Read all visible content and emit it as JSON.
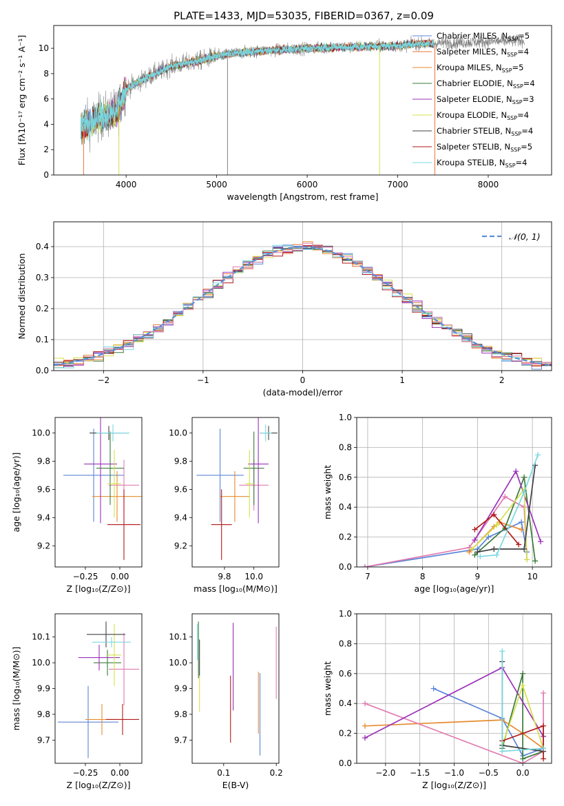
{
  "figure": {
    "title": "PLATE=1433, MJD=53035, FIBERID=0367, z=0.09"
  },
  "colors": {
    "Chabrier MILES": "#5b84d6",
    "Salpeter MILES": "#e5733a",
    "Kroupa MILES": "#e68a2e",
    "Chabrier ELODIE": "#3a7a3a",
    "Salpeter ELODIE": "#9b30b8",
    "Kroupa ELODIE": "#d4e04a",
    "Chabrier STELIB": "#404040",
    "Salpeter STELIB": "#b01818",
    "Kroupa STELIB": "#78d8e0",
    "model_pink": "#e07ab0",
    "normal_curve": "#5b8fd6",
    "data_spectrum": "#808080"
  },
  "chart_data": [
    {
      "id": "spectrum",
      "type": "line",
      "title": "PLATE=1433, MJD=53035, FIBERID=0367, z=0.09",
      "xlabel": "wavelength [Angstrom, rest frame]",
      "ylabel": "Flux [fλ10⁻¹⁷ erg cm⁻² s⁻¹ A⁻¹]",
      "xlim": [
        3200,
        8700
      ],
      "ylim": [
        0,
        11.8
      ],
      "xticks": [
        4000,
        5000,
        6000,
        7000,
        8000
      ],
      "yticks": [
        0,
        2,
        4,
        6,
        8,
        10
      ],
      "legend_position": "right",
      "legend": [
        {
          "label": "Chabrier MILES, N",
          "sub": "SSP",
          "suffix": "=5",
          "color": "#5b84d6"
        },
        {
          "label": "Salpeter MILES, N",
          "sub": "SSP",
          "suffix": "=4",
          "color": "#e5733a"
        },
        {
          "label": "Kroupa MILES, N",
          "sub": "SSP",
          "suffix": "=5",
          "color": "#e68a2e"
        },
        {
          "label": "Chabrier ELODIE, N",
          "sub": "SSP",
          "suffix": "=4",
          "color": "#3a7a3a"
        },
        {
          "label": "Salpeter ELODIE, N",
          "sub": "SSP",
          "suffix": "=3",
          "color": "#9b30b8"
        },
        {
          "label": "Kroupa ELODIE, N",
          "sub": "SSP",
          "suffix": "=4",
          "color": "#d4e04a"
        },
        {
          "label": "Chabrier STELIB, N",
          "sub": "SSP",
          "suffix": "=4",
          "color": "#404040"
        },
        {
          "label": "Salpeter STELIB, N",
          "sub": "SSP",
          "suffix": "=5",
          "color": "#b01818"
        },
        {
          "label": "Kroupa STELIB, N",
          "sub": "SSP",
          "suffix": "=4",
          "color": "#78d8e0"
        }
      ],
      "continuum": {
        "x": [
          3500,
          3700,
          3900,
          4000,
          4200,
          4500,
          4800,
          5000,
          5200,
          5500,
          6000,
          6500,
          7000,
          7300,
          7400
        ],
        "y": [
          3.8,
          4.5,
          5.0,
          6.8,
          7.6,
          8.6,
          9.0,
          9.4,
          9.6,
          9.8,
          10.0,
          10.1,
          10.2,
          10.4,
          10.3
        ]
      },
      "data_range": [
        3500,
        8400
      ],
      "model_range": [
        3500,
        7400
      ],
      "spikes": [
        {
          "x": 3530,
          "color": "#e5733a"
        },
        {
          "x": 3920,
          "color": "#d4e04a"
        },
        {
          "x": 5120,
          "color": "#808080"
        },
        {
          "x": 6800,
          "color": "#d4e04a"
        },
        {
          "x": 7410,
          "color": "#e5733a"
        }
      ]
    },
    {
      "id": "residuals",
      "type": "line",
      "xlabel": "(data-model)/error",
      "ylabel": "Normed distribution",
      "xlim": [
        -2.5,
        2.5
      ],
      "ylim": [
        0,
        0.48
      ],
      "xticks": [
        -2,
        -1,
        0,
        1,
        2
      ],
      "yticks": [
        0.0,
        0.1,
        0.2,
        0.3,
        0.4
      ],
      "grid": true,
      "legend_position": "top-right",
      "normal_label": "𝒩(0, 1)",
      "bin_width": 0.1
    },
    {
      "id": "age_Z",
      "type": "scatter",
      "xlabel": "Z [log₁₀(Z/Z⊙)]",
      "ylabel": "age  [log₁₀(age/yr)]",
      "xlim": [
        -0.47,
        0.16
      ],
      "ylim": [
        9.05,
        10.11
      ],
      "xticks": [
        -0.25,
        0.0
      ],
      "xticklabels": [
        "−0.25",
        "0.00"
      ],
      "yticks": [
        9.2,
        9.4,
        9.6,
        9.8,
        10.0
      ],
      "points": [
        {
          "x": -0.19,
          "y": 9.7,
          "xerr": 0.22,
          "yerr": 0.33,
          "color": "#5b84d6"
        },
        {
          "x": -0.02,
          "y": 9.55,
          "xerr": 0.18,
          "yerr": 0.18,
          "color": "#e68a2e"
        },
        {
          "x": 0.03,
          "y": 9.63,
          "xerr": 0.11,
          "yerr": 0.18,
          "color": "#e07ab0"
        },
        {
          "x": -0.07,
          "y": 9.75,
          "xerr": 0.1,
          "yerr": 0.26,
          "color": "#3a7a3a"
        },
        {
          "x": -0.14,
          "y": 9.78,
          "xerr": 0.12,
          "yerr": 0.42,
          "color": "#9b30b8"
        },
        {
          "x": -0.04,
          "y": 9.64,
          "xerr": 0.05,
          "yerr": 0.24,
          "color": "#d4e04a"
        },
        {
          "x": -0.08,
          "y": 10.0,
          "xerr": 0.14,
          "yerr": 0.05,
          "color": "#404040"
        },
        {
          "x": 0.03,
          "y": 9.35,
          "xerr": 0.12,
          "yerr": 0.25,
          "color": "#b01818"
        },
        {
          "x": -0.05,
          "y": 10.0,
          "xerr": 0.12,
          "yerr": 0.06,
          "color": "#78d8e0"
        }
      ]
    },
    {
      "id": "age_mass",
      "type": "scatter",
      "xlabel": "mass [log₁₀(M/M⊙)]",
      "ylabel": "",
      "xlim": [
        9.58,
        10.17
      ],
      "ylim": [
        9.05,
        10.11
      ],
      "xticks": [
        9.8,
        10.0
      ],
      "xticklabels": [
        "9.8",
        "10.0"
      ],
      "yticks": [
        9.2,
        9.4,
        9.6,
        9.8,
        10.0
      ],
      "points": [
        {
          "x": 9.77,
          "y": 9.7,
          "xerr": 0.16,
          "yerr": 0.33,
          "color": "#5b84d6"
        },
        {
          "x": 9.87,
          "y": 9.55,
          "xerr": 0.1,
          "yerr": 0.18,
          "color": "#e68a2e"
        },
        {
          "x": 10.0,
          "y": 9.63,
          "xerr": 0.1,
          "yerr": 0.18,
          "color": "#e07ab0"
        },
        {
          "x": 10.0,
          "y": 9.75,
          "xerr": 0.07,
          "yerr": 0.26,
          "color": "#3a7a3a"
        },
        {
          "x": 10.03,
          "y": 9.78,
          "xerr": 0.07,
          "yerr": 0.42,
          "color": "#9b30b8"
        },
        {
          "x": 9.97,
          "y": 9.64,
          "xerr": 0.03,
          "yerr": 0.24,
          "color": "#d4e04a"
        },
        {
          "x": 10.1,
          "y": 10.0,
          "xerr": 0.06,
          "yerr": 0.05,
          "color": "#404040"
        },
        {
          "x": 9.78,
          "y": 9.35,
          "xerr": 0.07,
          "yerr": 0.25,
          "color": "#b01818"
        },
        {
          "x": 10.08,
          "y": 10.0,
          "xerr": 0.04,
          "yerr": 0.06,
          "color": "#78d8e0"
        }
      ]
    },
    {
      "id": "weight_age",
      "type": "line",
      "xlabel": "age  [log₁₀(age/yr)]",
      "ylabel": "mass weight",
      "xlim": [
        6.8,
        10.35
      ],
      "ylim": [
        0,
        1.0
      ],
      "xticks": [
        7,
        8,
        9,
        10
      ],
      "yticks": [
        0.0,
        0.2,
        0.4,
        0.6,
        0.8,
        1.0
      ],
      "grid": true,
      "series": [
        {
          "color": "#5b84d6",
          "x": [
            6.95,
            9.0,
            9.2,
            9.8,
            9.9
          ],
          "y": [
            0.0,
            0.12,
            0.2,
            0.3,
            0.1
          ]
        },
        {
          "color": "#e68a2e",
          "x": [
            8.85,
            9.3,
            9.4,
            9.8
          ],
          "y": [
            0.1,
            0.27,
            0.3,
            0.25
          ]
        },
        {
          "color": "#e07ab0",
          "x": [
            6.95,
            8.85,
            9.5,
            9.85,
            9.9
          ],
          "y": [
            0.0,
            0.13,
            0.47,
            0.4,
            0.05
          ]
        },
        {
          "color": "#3a7a3a",
          "x": [
            8.95,
            9.5,
            9.85,
            10.05
          ],
          "y": [
            0.08,
            0.26,
            0.6,
            0.04
          ]
        },
        {
          "color": "#9b30b8",
          "x": [
            8.95,
            9.7,
            10.15
          ],
          "y": [
            0.18,
            0.64,
            0.17
          ]
        },
        {
          "color": "#d4e04a",
          "x": [
            8.9,
            9.35,
            9.85,
            9.9
          ],
          "y": [
            0.12,
            0.28,
            0.52,
            0.05
          ]
        },
        {
          "color": "#404040",
          "x": [
            9.0,
            9.3,
            9.85,
            10.05
          ],
          "y": [
            0.1,
            0.12,
            0.12,
            0.68
          ]
        },
        {
          "color": "#b01818",
          "x": [
            8.95,
            9.3,
            9.75
          ],
          "y": [
            0.25,
            0.35,
            0.15
          ]
        },
        {
          "color": "#78d8e0",
          "x": [
            9.05,
            9.35,
            9.85,
            10.1
          ],
          "y": [
            0.07,
            0.08,
            0.5,
            0.75
          ]
        }
      ]
    },
    {
      "id": "mass_Z",
      "type": "scatter",
      "xlabel": "Z [log₁₀(Z/Z⊙)]",
      "ylabel": "mass [log₁₀(M/M⊙)]",
      "xlim": [
        -0.47,
        0.16
      ],
      "ylim": [
        9.61,
        10.19
      ],
      "xticks": [
        -0.25,
        0.0
      ],
      "xticklabels": [
        "−0.25",
        "0.00"
      ],
      "yticks": [
        9.7,
        9.8,
        9.9,
        10.0,
        10.1
      ],
      "points": [
        {
          "x": -0.23,
          "y": 9.77,
          "xerr": 0.22,
          "yerr": 0.14,
          "color": "#5b84d6"
        },
        {
          "x": -0.13,
          "y": 9.78,
          "xerr": 0.12,
          "yerr": 0.06,
          "color": "#e68a2e"
        },
        {
          "x": 0.03,
          "y": 9.975,
          "xerr": 0.11,
          "yerr": 0.14,
          "color": "#e07ab0"
        },
        {
          "x": -0.09,
          "y": 10.0,
          "xerr": 0.1,
          "yerr": 0.05,
          "color": "#3a7a3a"
        },
        {
          "x": -0.15,
          "y": 10.02,
          "xerr": 0.15,
          "yerr": 0.05,
          "color": "#9b30b8"
        },
        {
          "x": -0.04,
          "y": 10.03,
          "xerr": 0.05,
          "yerr": 0.12,
          "color": "#d4e04a"
        },
        {
          "x": -0.1,
          "y": 10.11,
          "xerr": 0.14,
          "yerr": 0.05,
          "color": "#404040"
        },
        {
          "x": 0.02,
          "y": 9.78,
          "xerr": 0.12,
          "yerr": 0.06,
          "color": "#b01818"
        },
        {
          "x": -0.06,
          "y": 10.08,
          "xerr": 0.14,
          "yerr": 0.02,
          "color": "#78d8e0"
        }
      ]
    },
    {
      "id": "mass_EBV",
      "type": "scatter",
      "xlabel": "E(B-V)",
      "ylabel": "",
      "xlim": [
        0.04,
        0.205
      ],
      "ylim": [
        9.61,
        10.19
      ],
      "xticks": [
        0.1,
        0.2
      ],
      "xticklabels": [
        "0.1",
        "0.2"
      ],
      "yticks": [
        9.7,
        9.8,
        9.9,
        10.0,
        10.1
      ],
      "points": [
        {
          "x": 0.169,
          "y": 9.8,
          "yerr": 0.16,
          "color": "#5b84d6"
        },
        {
          "x": 0.166,
          "y": 9.845,
          "yerr": 0.12,
          "color": "#e68a2e"
        },
        {
          "x": 0.2,
          "y": 10.0,
          "yerr": 0.14,
          "color": "#e07ab0"
        },
        {
          "x": 0.052,
          "y": 10.05,
          "yerr": 0.11,
          "color": "#3a7a3a"
        },
        {
          "x": 0.118,
          "y": 9.985,
          "yerr": 0.17,
          "color": "#9b30b8"
        },
        {
          "x": 0.054,
          "y": 9.88,
          "yerr": 0.07,
          "color": "#d4e04a"
        },
        {
          "x": 0.054,
          "y": 10.02,
          "yerr": 0.07,
          "color": "#404040"
        },
        {
          "x": 0.113,
          "y": 9.82,
          "yerr": 0.13,
          "color": "#b01818"
        },
        {
          "x": 0.05,
          "y": 10.08,
          "yerr": 0.07,
          "color": "#78d8e0"
        }
      ]
    },
    {
      "id": "weight_Z",
      "type": "line",
      "xlabel": "Z [log₁₀(Z/Z⊙)]",
      "ylabel": "mass weight",
      "xlim": [
        -2.42,
        0.42
      ],
      "ylim": [
        0,
        1.0
      ],
      "xticks": [
        -2.0,
        -1.5,
        -1.0,
        -0.5,
        0.0
      ],
      "xticklabels": [
        "−2.0",
        "−1.5",
        "−1.0",
        "−0.5",
        "0.0"
      ],
      "yticks": [
        0.0,
        0.2,
        0.4,
        0.6,
        0.8,
        1.0
      ],
      "grid": true,
      "series": [
        {
          "color": "#5b84d6",
          "x": [
            -1.3,
            -0.3,
            0.0,
            0.3
          ],
          "y": [
            0.5,
            0.3,
            0.05,
            0.1
          ]
        },
        {
          "color": "#e68a2e",
          "x": [
            -2.3,
            -0.3,
            0.0,
            0.3
          ],
          "y": [
            0.25,
            0.29,
            0.2,
            0.1
          ]
        },
        {
          "color": "#e07ab0",
          "x": [
            -2.3,
            0.0,
            0.3,
            0.3
          ],
          "y": [
            0.4,
            0.0,
            0.08,
            0.47
          ]
        },
        {
          "color": "#3a7a3a",
          "x": [
            -0.3,
            0.0,
            0.0,
            0.3
          ],
          "y": [
            0.1,
            0.6,
            0.03,
            0.08
          ]
        },
        {
          "color": "#9b30b8",
          "x": [
            -2.3,
            -0.3,
            0.3
          ],
          "y": [
            0.17,
            0.64,
            0.18
          ]
        },
        {
          "color": "#d4e04a",
          "x": [
            -0.3,
            0.0,
            0.3
          ],
          "y": [
            0.12,
            0.52,
            0.1
          ]
        },
        {
          "color": "#404040",
          "x": [
            -0.3,
            -0.3,
            0.3
          ],
          "y": [
            0.68,
            0.12,
            0.08
          ]
        },
        {
          "color": "#b01818",
          "x": [
            -0.3,
            0.3,
            0.3
          ],
          "y": [
            0.15,
            0.25,
            0.03
          ]
        },
        {
          "color": "#78d8e0",
          "x": [
            -0.3,
            -0.3,
            0.3
          ],
          "y": [
            0.75,
            0.08,
            0.1
          ]
        }
      ]
    }
  ]
}
